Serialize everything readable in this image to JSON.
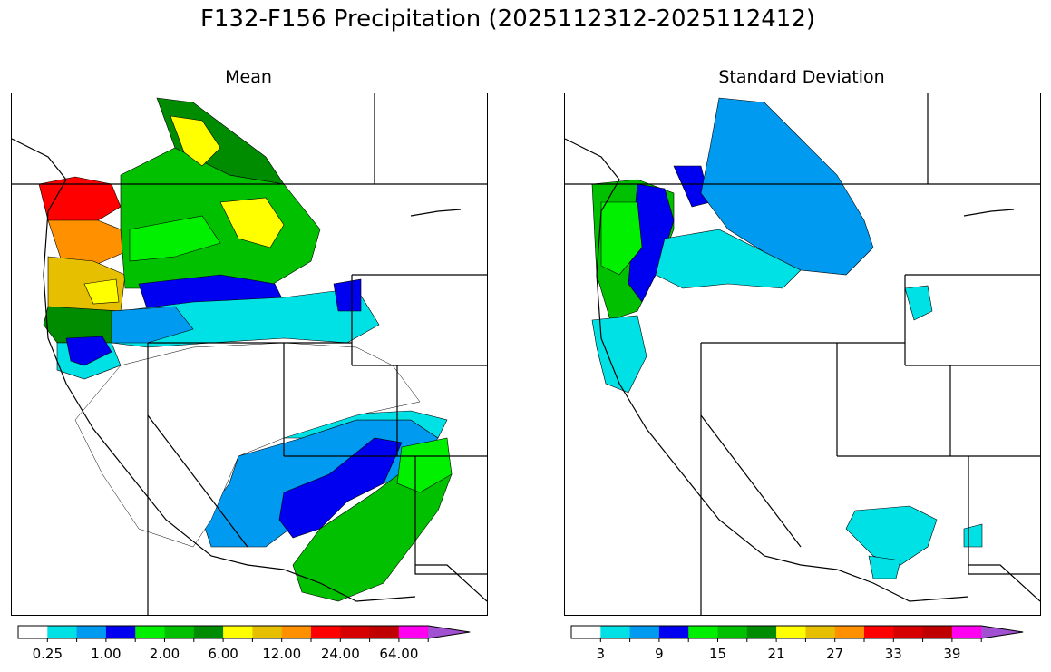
{
  "title": "F132-F156 Precipitation (2025112312-2025112412)",
  "panels": [
    {
      "title": "Mean"
    },
    {
      "title": "Standard Deviation"
    }
  ],
  "colorbars": {
    "colors": [
      "#ffffff",
      "#00e1e6",
      "#009bf0",
      "#0000f0",
      "#00f000",
      "#00c000",
      "#008c00",
      "#ffff00",
      "#e6c000",
      "#ff9000",
      "#ff0000",
      "#d60000",
      "#c00000",
      "#ff00f0",
      "#a050d0"
    ],
    "mean": {
      "ticks": [
        "0.25",
        "1.00",
        "2.00",
        "6.00",
        "12.00",
        "24.00",
        "64.00"
      ]
    },
    "stddev": {
      "ticks": [
        "3",
        "9",
        "15",
        "21",
        "27",
        "33",
        "39"
      ]
    }
  },
  "map": {
    "mean_regions": [
      {
        "region": "Washington coast",
        "color_class": "24.00"
      },
      {
        "region": "Oregon coast",
        "color_class": "12.00"
      },
      {
        "region": "Northern Idaho / Montana",
        "color_class": "2.00"
      },
      {
        "region": "Arizona / New Mexico",
        "color_class": "2.00"
      },
      {
        "region": "Great Basin",
        "color_class": "0.25"
      }
    ],
    "stddev_regions": [
      {
        "region": "Washington Cascades",
        "color_class": "15"
      },
      {
        "region": "Northern Rockies",
        "color_class": "9"
      },
      {
        "region": "New Mexico",
        "color_class": "3"
      }
    ]
  }
}
